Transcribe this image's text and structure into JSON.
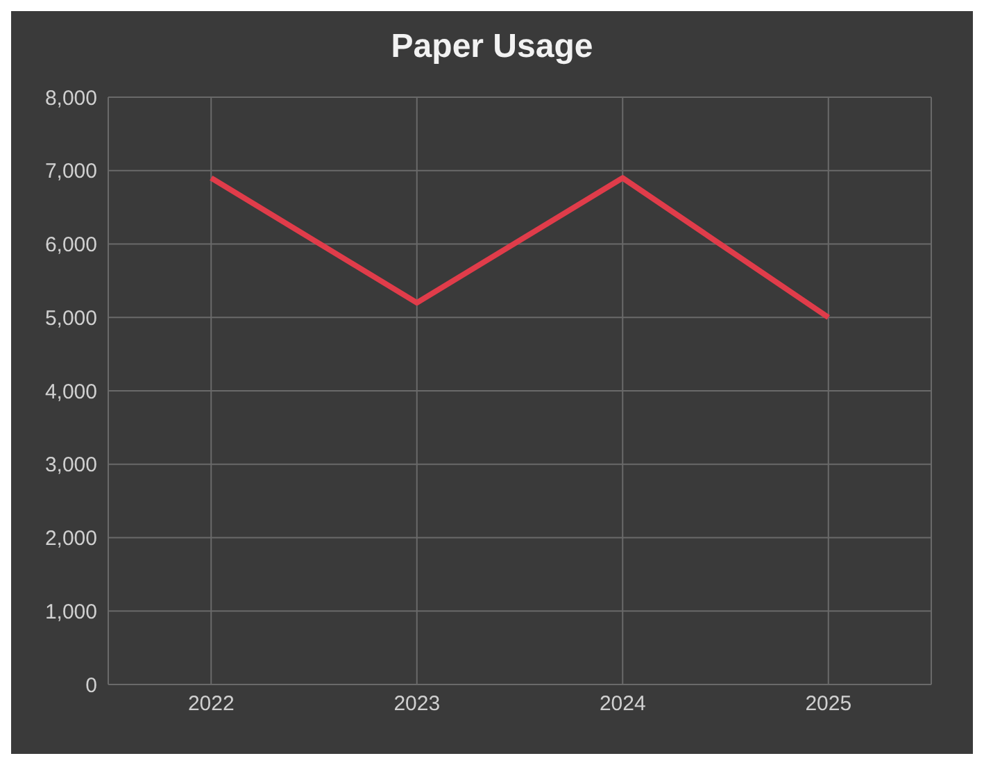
{
  "chart_data": {
    "type": "line",
    "title": "Paper Usage",
    "categories": [
      "2022",
      "2023",
      "2024",
      "2025"
    ],
    "series": [
      {
        "color": "#e03c4a",
        "values": [
          6900,
          5200,
          6900,
          5000
        ]
      }
    ],
    "ylim": [
      0,
      8000
    ],
    "yticks": [
      {
        "value": 0,
        "label": "0"
      },
      {
        "value": 1000,
        "label": "1,000"
      },
      {
        "value": 2000,
        "label": "2,000"
      },
      {
        "value": 3000,
        "label": "3,000"
      },
      {
        "value": 4000,
        "label": "4,000"
      },
      {
        "value": 5000,
        "label": "5,000"
      },
      {
        "value": 6000,
        "label": "6,000"
      },
      {
        "value": 7000,
        "label": "7,000"
      },
      {
        "value": 8000,
        "label": "8,000"
      }
    ],
    "grid": true,
    "marker": "none",
    "line_style": "solid"
  }
}
